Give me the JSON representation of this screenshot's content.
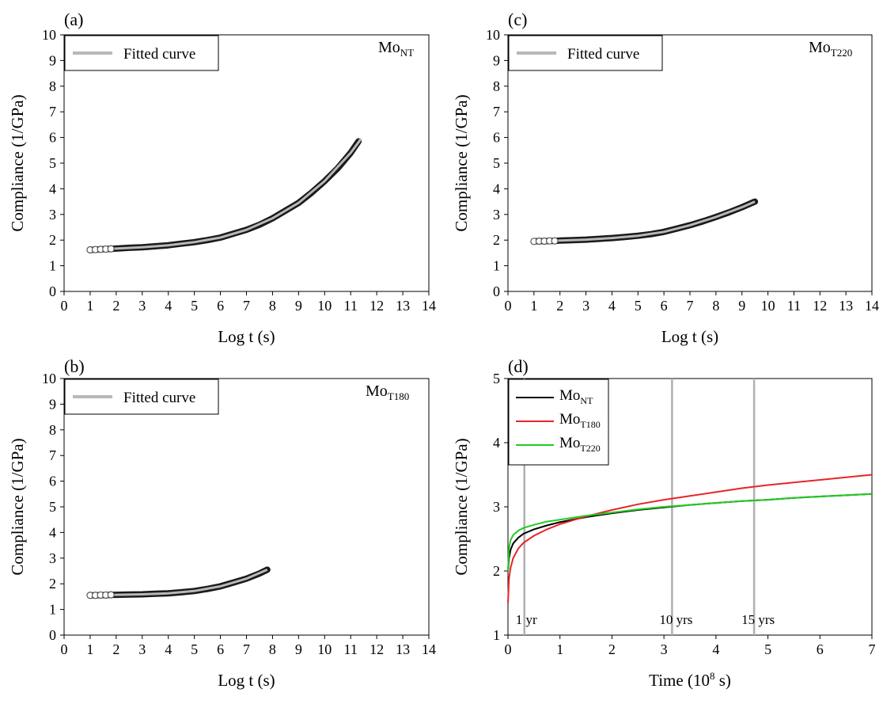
{
  "chart_data": [
    {
      "panel": "(a)",
      "type": "scatter",
      "sample_label": {
        "base": "Mo",
        "sub": "NT"
      },
      "legend": [
        "Fitted curve"
      ],
      "xlabel": "Log t (s)",
      "ylabel": "Compliance (1/GPa)",
      "xlim": [
        0,
        14
      ],
      "ylim": [
        0,
        10
      ],
      "xticks": [
        "0",
        "1",
        "2",
        "3",
        "4",
        "5",
        "6",
        "7",
        "8",
        "9",
        "10",
        "11",
        "12",
        "13",
        "14"
      ],
      "yticks": [
        "0",
        "1",
        "2",
        "3",
        "4",
        "5",
        "6",
        "7",
        "8",
        "9",
        "10"
      ],
      "series": [
        {
          "kind": "points",
          "x": [
            1.0,
            1.2,
            1.4,
            1.6,
            1.8,
            2.0,
            2.5,
            3.0,
            3.5,
            4.0,
            4.5,
            5.0,
            5.5,
            6.0,
            6.5,
            7.0,
            7.5,
            8.0,
            8.5,
            9.0,
            9.5,
            10.0,
            10.5,
            11.0,
            11.3
          ],
          "y": [
            1.62,
            1.63,
            1.64,
            1.65,
            1.66,
            1.67,
            1.7,
            1.72,
            1.76,
            1.8,
            1.86,
            1.92,
            2.0,
            2.1,
            2.25,
            2.4,
            2.6,
            2.85,
            3.15,
            3.45,
            3.85,
            4.3,
            4.8,
            5.4,
            5.85
          ]
        },
        {
          "kind": "fit",
          "x": [
            1.0,
            2.0,
            3.0,
            4.0,
            5.0,
            6.0,
            7.0,
            8.0,
            9.0,
            10.0,
            11.0,
            11.4
          ],
          "y": [
            1.62,
            1.67,
            1.72,
            1.8,
            1.92,
            2.1,
            2.4,
            2.85,
            3.45,
            4.3,
            5.4,
            5.95
          ]
        }
      ]
    },
    {
      "panel": "(b)",
      "type": "scatter",
      "sample_label": {
        "base": "Mo",
        "sub": "T180"
      },
      "legend": [
        "Fitted curve"
      ],
      "xlabel": "Log t (s)",
      "ylabel": "Compliance (1/GPa)",
      "xlim": [
        0,
        14
      ],
      "ylim": [
        0,
        10
      ],
      "xticks": [
        "0",
        "1",
        "2",
        "3",
        "4",
        "5",
        "6",
        "7",
        "8",
        "9",
        "10",
        "11",
        "12",
        "13",
        "14"
      ],
      "yticks": [
        "0",
        "1",
        "2",
        "3",
        "4",
        "5",
        "6",
        "7",
        "8",
        "9",
        "10"
      ],
      "series": [
        {
          "kind": "points",
          "x": [
            1.0,
            1.2,
            1.4,
            1.6,
            1.8,
            2.0,
            2.5,
            3.0,
            3.5,
            4.0,
            4.5,
            5.0,
            5.5,
            6.0,
            6.5,
            7.0,
            7.5,
            7.8
          ],
          "y": [
            1.55,
            1.55,
            1.56,
            1.56,
            1.57,
            1.57,
            1.58,
            1.59,
            1.61,
            1.63,
            1.67,
            1.72,
            1.8,
            1.9,
            2.05,
            2.2,
            2.4,
            2.55
          ]
        },
        {
          "kind": "fit",
          "x": [
            1.0,
            2.0,
            3.0,
            4.0,
            5.0,
            6.0,
            7.0,
            7.8
          ],
          "y": [
            1.55,
            1.57,
            1.59,
            1.63,
            1.72,
            1.9,
            2.2,
            2.55
          ]
        }
      ]
    },
    {
      "panel": "(c)",
      "type": "scatter",
      "sample_label": {
        "base": "Mo",
        "sub": "T220"
      },
      "legend": [
        "Fitted curve"
      ],
      "xlabel": "Log t (s)",
      "ylabel": "Compliance (1/GPa)",
      "xlim": [
        0,
        14
      ],
      "ylim": [
        0,
        10
      ],
      "xticks": [
        "0",
        "1",
        "2",
        "3",
        "4",
        "5",
        "6",
        "7",
        "8",
        "9",
        "10",
        "11",
        "12",
        "13",
        "14"
      ],
      "yticks": [
        "0",
        "1",
        "2",
        "3",
        "4",
        "5",
        "6",
        "7",
        "8",
        "9",
        "10"
      ],
      "series": [
        {
          "kind": "points",
          "x": [
            1.0,
            1.2,
            1.4,
            1.6,
            1.8,
            2.0,
            2.5,
            3.0,
            3.5,
            4.0,
            4.5,
            5.0,
            5.5,
            6.0,
            6.5,
            7.0,
            7.5,
            8.0,
            8.5,
            9.0,
            9.5
          ],
          "y": [
            1.95,
            1.96,
            1.96,
            1.97,
            1.97,
            1.98,
            2.0,
            2.02,
            2.05,
            2.08,
            2.12,
            2.17,
            2.23,
            2.32,
            2.45,
            2.58,
            2.73,
            2.9,
            3.08,
            3.28,
            3.5
          ]
        },
        {
          "kind": "fit",
          "x": [
            1.0,
            2.0,
            3.0,
            4.0,
            5.0,
            6.0,
            7.0,
            8.0,
            9.0,
            9.5
          ],
          "y": [
            1.95,
            1.98,
            2.02,
            2.08,
            2.17,
            2.32,
            2.58,
            2.9,
            3.28,
            3.5
          ]
        }
      ]
    },
    {
      "panel": "(d)",
      "type": "line",
      "xlabel": "Time (10",
      "xlabel_sup": "8",
      "xlabel_end": " s)",
      "ylabel": "Compliance (1/GPa)",
      "xlim": [
        0,
        7
      ],
      "ylim": [
        1,
        5
      ],
      "xticks": [
        "0",
        "1",
        "2",
        "3",
        "4",
        "5",
        "6",
        "7"
      ],
      "yticks": [
        "1",
        "2",
        "3",
        "4",
        "5"
      ],
      "vlines": [
        {
          "x": 0.3156,
          "label": "1 yr"
        },
        {
          "x": 3.156,
          "label": "10 yrs"
        },
        {
          "x": 4.734,
          "label": "15 yrs"
        }
      ],
      "series": [
        {
          "name_base": "Mo",
          "name_sub": "NT",
          "color": "#000000",
          "x": [
            0.0,
            0.02,
            0.05,
            0.1,
            0.2,
            0.3,
            0.5,
            0.75,
            1.0,
            1.5,
            2.0,
            2.5,
            3.0,
            3.5,
            4.0,
            4.5,
            5.0,
            5.5,
            6.0,
            6.5,
            7.0
          ],
          "y": [
            2.0,
            2.2,
            2.33,
            2.43,
            2.52,
            2.58,
            2.65,
            2.71,
            2.76,
            2.84,
            2.9,
            2.95,
            2.99,
            3.03,
            3.06,
            3.09,
            3.11,
            3.14,
            3.16,
            3.18,
            3.2
          ]
        },
        {
          "name_base": "Mo",
          "name_sub": "T180",
          "color": "#e8242a",
          "x": [
            0.0,
            0.02,
            0.05,
            0.1,
            0.2,
            0.3,
            0.5,
            0.75,
            1.0,
            1.5,
            2.0,
            2.5,
            3.0,
            3.5,
            4.0,
            4.5,
            5.0,
            5.5,
            6.0,
            6.5,
            7.0
          ],
          "y": [
            1.5,
            1.88,
            2.05,
            2.2,
            2.35,
            2.44,
            2.55,
            2.65,
            2.73,
            2.85,
            2.95,
            3.04,
            3.11,
            3.17,
            3.23,
            3.29,
            3.34,
            3.38,
            3.42,
            3.46,
            3.5
          ]
        },
        {
          "name_base": "Mo",
          "name_sub": "T220",
          "color": "#22cc22",
          "x": [
            0.0,
            0.02,
            0.05,
            0.1,
            0.2,
            0.3,
            0.5,
            0.75,
            1.0,
            1.5,
            2.0,
            2.5,
            3.0,
            3.5,
            4.0,
            4.5,
            5.0,
            5.5,
            6.0,
            6.5,
            7.0
          ],
          "y": [
            2.0,
            2.35,
            2.48,
            2.56,
            2.63,
            2.67,
            2.72,
            2.77,
            2.8,
            2.86,
            2.91,
            2.96,
            3.0,
            3.03,
            3.06,
            3.09,
            3.11,
            3.14,
            3.16,
            3.18,
            3.2
          ]
        }
      ]
    }
  ]
}
